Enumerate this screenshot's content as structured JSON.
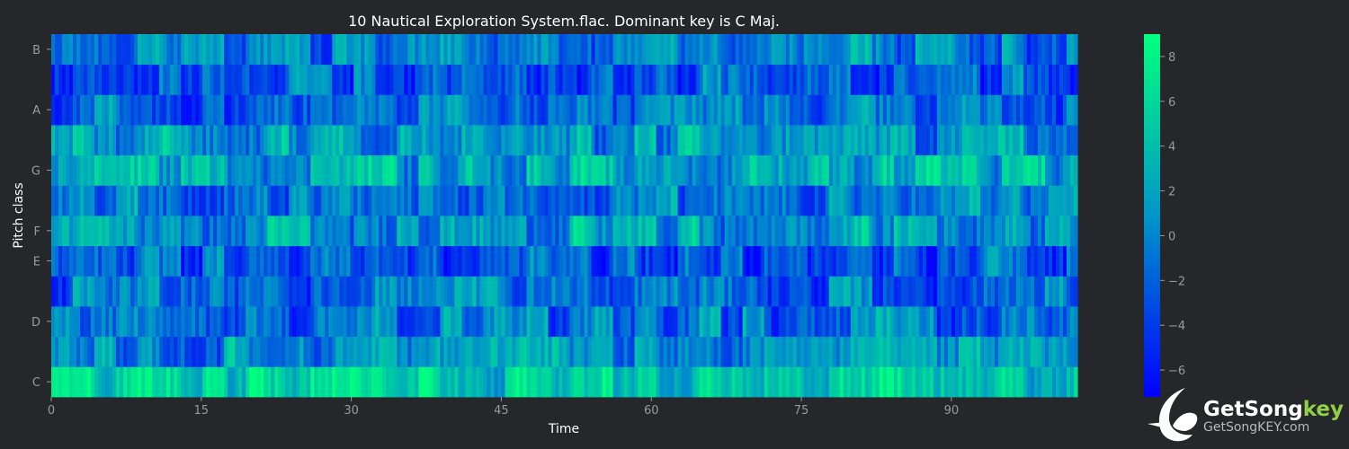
{
  "chart_data": {
    "type": "heatmap",
    "title": "10 Nautical Exploration System.flac. Dominant key is C Maj.",
    "xlabel": "Time",
    "ylabel": "Pitch class",
    "xlim": [
      0,
      102.6
    ],
    "x_ticks": [
      0,
      15,
      30,
      45,
      60,
      75,
      90
    ],
    "y_tick_labels": [
      "C",
      "D",
      "E",
      "F",
      "G",
      "A",
      "B"
    ],
    "pitch_rows": [
      "C",
      "C#",
      "D",
      "D#",
      "E",
      "F",
      "F#",
      "G",
      "G#",
      "A",
      "A#",
      "B"
    ],
    "colorbar": {
      "min": -7.2,
      "max": 9.0,
      "ticks": [
        -6,
        -4,
        -2,
        0,
        2,
        4,
        6,
        8
      ],
      "colormap": [
        "#0000ff",
        "#0096c8",
        "#00ff7f"
      ]
    },
    "row_mean_levels": {
      "C": 4.5,
      "C#": 0.5,
      "D": -1.0,
      "D#": -1.5,
      "E": -2.5,
      "F": 1.5,
      "F#": -0.5,
      "G": 2.5,
      "G#": 1.0,
      "A": -1.0,
      "A#": -2.0,
      "B": -1.0
    }
  },
  "brand": {
    "name_main": "GetSong",
    "name_key": "key",
    "url": "GetSongKEY.com"
  }
}
